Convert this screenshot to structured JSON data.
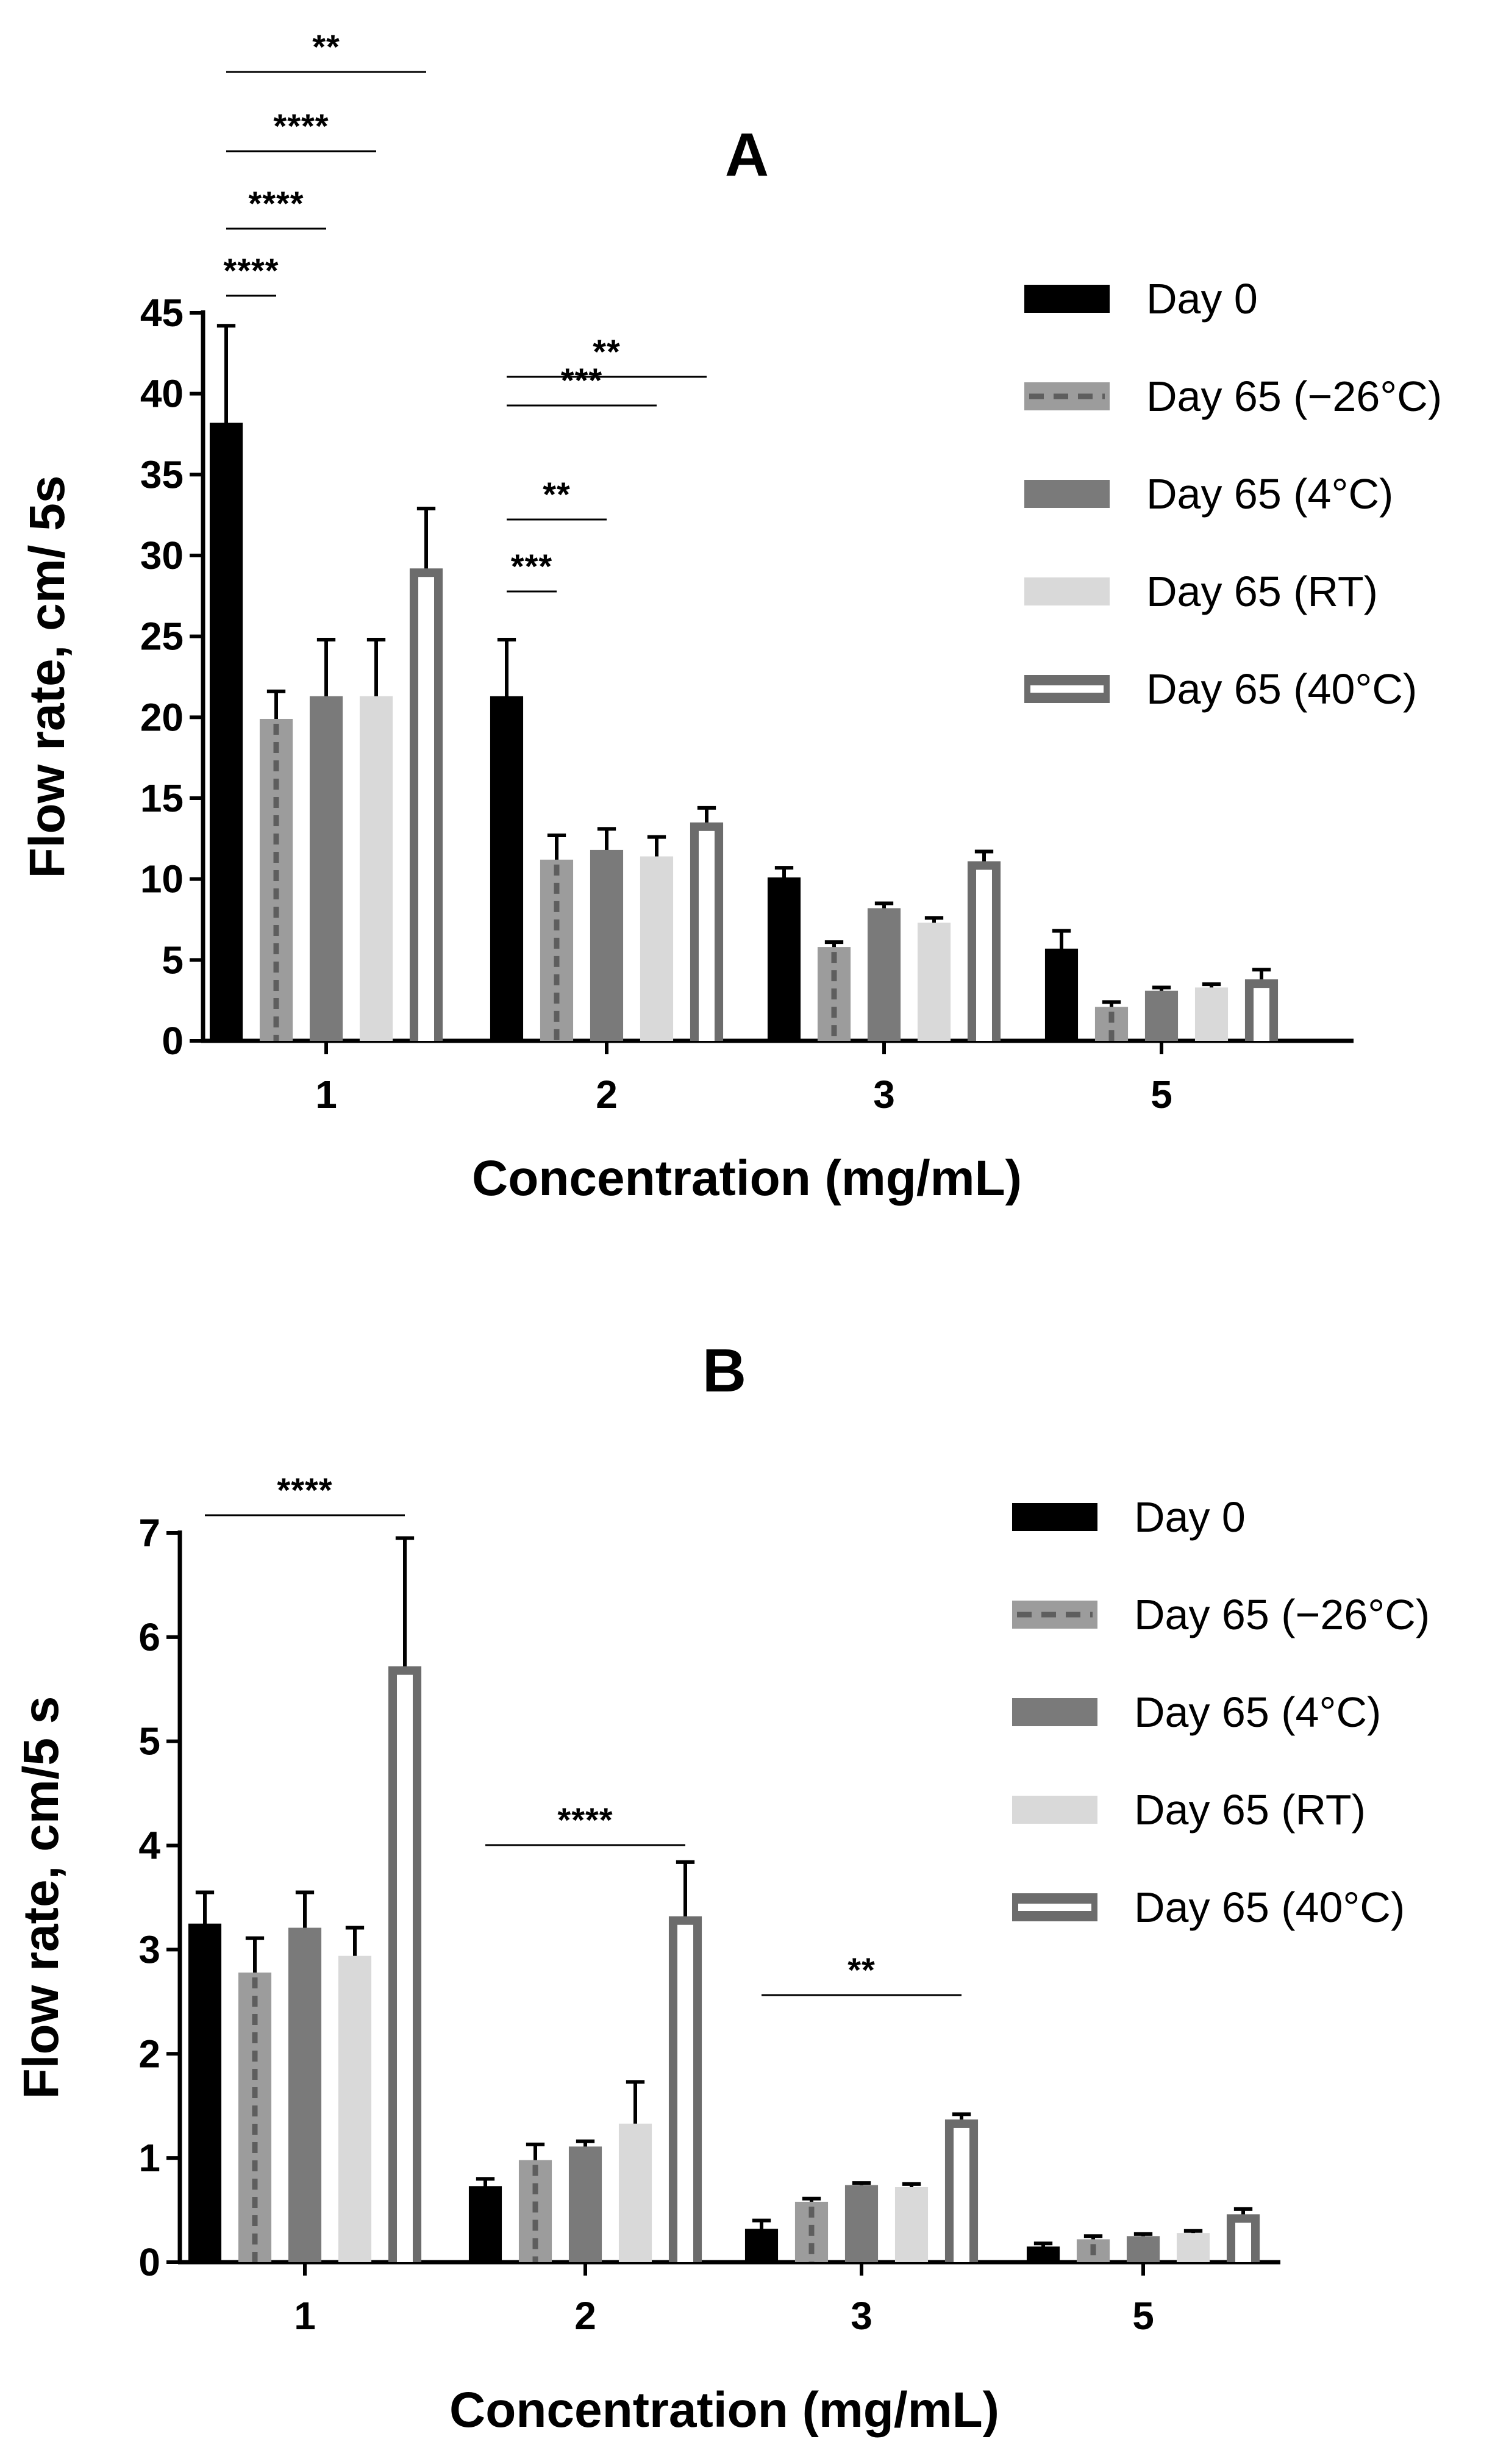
{
  "colors": {
    "day0": "#000000",
    "minus26_fill": "#9c9c9c",
    "minus26_dash": "#5e5e5e",
    "c4": "#7a7a7a",
    "rt": "#d9d9d9",
    "c40_edge": "#6c6c6c",
    "c40_inner": "#ffffff"
  },
  "chart_data": [
    {
      "type": "bar",
      "title": "A",
      "xlabel": "Concentration (mg/mL)",
      "ylabel": "Flow rate, cm/ 5s",
      "ylim": [
        0,
        45
      ],
      "yticks": [
        "0",
        "5",
        "10",
        "15",
        "20",
        "25",
        "30",
        "35",
        "40",
        "45"
      ],
      "categories": [
        "1",
        "2",
        "3",
        "5"
      ],
      "legend_position": "top-right",
      "series": [
        {
          "name": "Day 0",
          "key": "day0",
          "values": [
            38.2,
            21.3,
            10.1,
            5.7
          ],
          "errors": [
            6.0,
            3.5,
            0.6,
            1.1
          ]
        },
        {
          "name": "Day 65 (−26°C)",
          "key": "minus26",
          "values": [
            19.9,
            11.2,
            5.8,
            2.1
          ],
          "errors": [
            1.7,
            1.5,
            0.3,
            0.3
          ]
        },
        {
          "name": "Day 65 (4°C)",
          "key": "c4",
          "values": [
            21.3,
            11.8,
            8.2,
            3.1
          ],
          "errors": [
            3.5,
            1.3,
            0.3,
            0.2
          ]
        },
        {
          "name": "Day 65 (RT)",
          "key": "rt",
          "values": [
            21.3,
            11.4,
            7.3,
            3.3
          ],
          "errors": [
            3.5,
            1.2,
            0.3,
            0.2
          ]
        },
        {
          "name": "Day 65 (40°C)",
          "key": "c40",
          "values": [
            29.2,
            13.5,
            11.1,
            3.8
          ],
          "errors": [
            3.7,
            0.9,
            0.6,
            0.6
          ]
        }
      ],
      "significance": [
        {
          "label": "****",
          "category": "1",
          "from": "Day 0",
          "to": "Day 65 (−26°C)",
          "level": 0
        },
        {
          "label": "****",
          "category": "1",
          "from": "Day 0",
          "to": "Day 65 (4°C)",
          "level": 1
        },
        {
          "label": "****",
          "category": "1",
          "from": "Day 0",
          "to": "Day 65 (RT)",
          "level": 2
        },
        {
          "label": "**",
          "category": "1",
          "from": "Day 0",
          "to": "Day 65 (40°C)",
          "level": 3
        },
        {
          "label": "***",
          "category": "2",
          "from": "Day 0",
          "to": "Day 65 (−26°C)",
          "level": 0
        },
        {
          "label": "**",
          "category": "2",
          "from": "Day 0",
          "to": "Day 65 (4°C)",
          "level": 1
        },
        {
          "label": "***",
          "category": "2",
          "from": "Day 0",
          "to": "Day 65 (RT)",
          "level": 2
        },
        {
          "label": "**",
          "category": "2",
          "from": "Day 0",
          "to": "Day 65 (40°C)",
          "level": 3
        }
      ]
    },
    {
      "type": "bar",
      "title": "B",
      "xlabel": "Concentration (mg/mL)",
      "ylabel": "Flow rate, cm/5 s",
      "ylim": [
        0,
        7
      ],
      "yticks": [
        "0",
        "1",
        "2",
        "3",
        "4",
        "5",
        "6",
        "7"
      ],
      "categories": [
        "1",
        "2",
        "3",
        "5"
      ],
      "legend_position": "top-right",
      "series": [
        {
          "name": "Day 0",
          "key": "day0",
          "values": [
            3.25,
            0.73,
            0.32,
            0.15
          ],
          "errors": [
            0.3,
            0.07,
            0.08,
            0.03
          ]
        },
        {
          "name": "Day 65 (−26°C)",
          "key": "minus26",
          "values": [
            2.78,
            0.98,
            0.58,
            0.22
          ],
          "errors": [
            0.33,
            0.15,
            0.03,
            0.03
          ]
        },
        {
          "name": "Day 65 (4°C)",
          "key": "c4",
          "values": [
            3.21,
            1.11,
            0.74,
            0.25
          ],
          "errors": [
            0.34,
            0.05,
            0.02,
            0.02
          ]
        },
        {
          "name": "Day 65 (RT)",
          "key": "rt",
          "values": [
            2.94,
            1.33,
            0.72,
            0.28
          ],
          "errors": [
            0.27,
            0.4,
            0.03,
            0.02
          ]
        },
        {
          "name": "Day 65 (40°C)",
          "key": "c40",
          "values": [
            5.72,
            3.32,
            1.37,
            0.46
          ],
          "errors": [
            1.23,
            0.52,
            0.05,
            0.05
          ]
        }
      ],
      "significance": [
        {
          "label": "****",
          "category": "1",
          "from": "Day 0",
          "to": "Day 65 (40°C)",
          "level": 0
        },
        {
          "label": "****",
          "category": "2",
          "from": "Day 0",
          "to": "Day 65 (40°C)",
          "level": 0
        },
        {
          "label": "**",
          "category": "3",
          "from": "Day 0",
          "to": "Day 65 (40°C)",
          "level": 0
        }
      ]
    }
  ]
}
